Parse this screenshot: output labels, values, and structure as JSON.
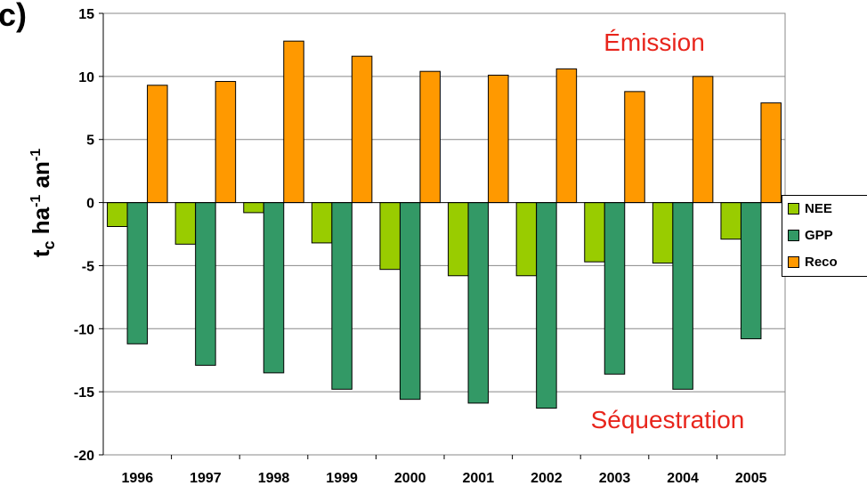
{
  "panel_label": "c)",
  "chart_data": {
    "type": "bar",
    "categories": [
      "1996",
      "1997",
      "1998",
      "1999",
      "2000",
      "2001",
      "2002",
      "2003",
      "2004",
      "2005"
    ],
    "series": [
      {
        "name": "NEE",
        "color": "#99cc00",
        "values": [
          -1.9,
          -3.3,
          -0.8,
          -3.2,
          -5.3,
          -5.8,
          -5.8,
          -4.7,
          -4.8,
          -2.9
        ]
      },
      {
        "name": "GPP",
        "color": "#339966",
        "values": [
          -11.2,
          -12.9,
          -13.5,
          -14.8,
          -15.6,
          -15.9,
          -16.3,
          -13.6,
          -14.8,
          -10.8
        ]
      },
      {
        "name": "Reco",
        "color": "#ff9900",
        "values": [
          9.3,
          9.6,
          12.8,
          11.6,
          10.4,
          10.1,
          10.6,
          8.8,
          10.0,
          7.9
        ]
      }
    ],
    "ylim": [
      -20,
      15
    ],
    "yticks": [
      "-20",
      "-15",
      "-10",
      "-5",
      "0",
      "5",
      "10",
      "15"
    ],
    "ylabel": "tc ha-1 an-1",
    "annotations": {
      "top": "Émission",
      "bottom": "Séquestration"
    },
    "grid": true,
    "legend_position": "right"
  }
}
